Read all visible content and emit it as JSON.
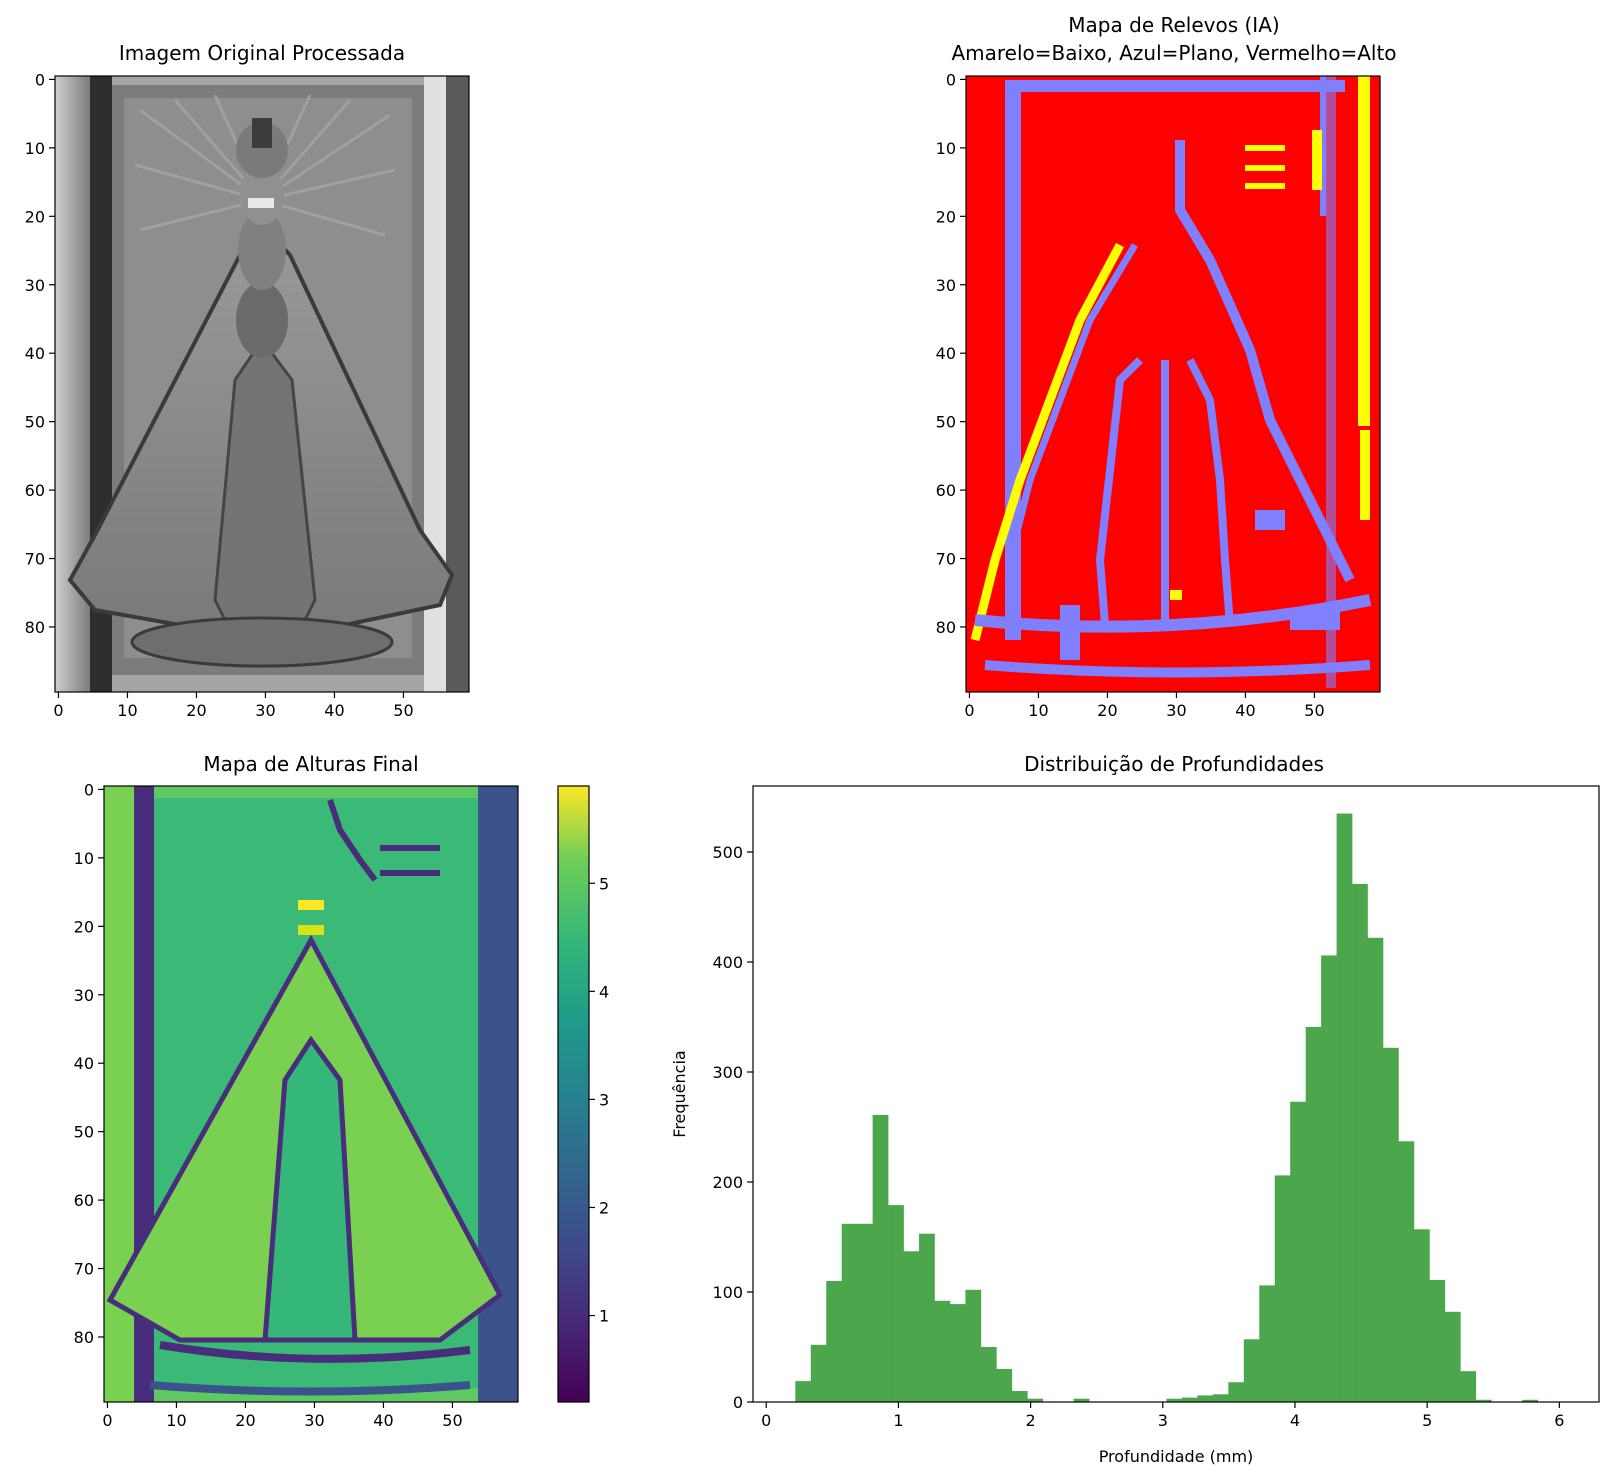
{
  "panels": {
    "original": {
      "title": "Imagem Original Processada",
      "xticks": [
        "0",
        "10",
        "20",
        "30",
        "40",
        "50"
      ],
      "yticks": [
        "0",
        "10",
        "20",
        "30",
        "40",
        "50",
        "60",
        "70",
        "80"
      ],
      "xlim": [
        0,
        60
      ],
      "ylim": [
        0,
        90
      ]
    },
    "relief": {
      "title_line1": "Mapa de Relevos (IA)",
      "title_line2": "Amarelo=Baixo, Azul=Plano, Vermelho=Alto",
      "xticks": [
        "0",
        "10",
        "20",
        "30",
        "40",
        "50"
      ],
      "yticks": [
        "0",
        "10",
        "20",
        "30",
        "40",
        "50",
        "60",
        "70",
        "80"
      ],
      "xlim": [
        0,
        60
      ],
      "ylim": [
        0,
        90
      ],
      "colors": {
        "low": "#ffff00",
        "flat": "#8080ff",
        "high": "#ff0000"
      }
    },
    "heights": {
      "title": "Mapa de Alturas Final",
      "xticks": [
        "0",
        "10",
        "20",
        "30",
        "40",
        "50"
      ],
      "yticks": [
        "0",
        "10",
        "20",
        "30",
        "40",
        "50",
        "60",
        "70",
        "80"
      ],
      "xlim": [
        0,
        60
      ],
      "ylim": [
        0,
        90
      ],
      "colorbar": {
        "ticks": [
          "1",
          "2",
          "3",
          "4",
          "5"
        ],
        "range": [
          0.2,
          5.9
        ]
      }
    }
  },
  "chart_data": {
    "type": "bar",
    "title": "Distribuição de Profundidades",
    "xlabel": "Profundidade (mm)",
    "ylabel": "Frequência",
    "xlim": [
      -0.1,
      6.3
    ],
    "ylim": [
      0,
      560
    ],
    "xticks": [
      "0",
      "1",
      "2",
      "3",
      "4",
      "5",
      "6"
    ],
    "yticks": [
      "0",
      "100",
      "200",
      "300",
      "400",
      "500"
    ],
    "bar_color": "#4ca64c",
    "bin_width": 0.117,
    "bin_starts": [
      0.22,
      0.337,
      0.454,
      0.571,
      0.688,
      0.805,
      0.922,
      1.039,
      1.156,
      1.273,
      1.39,
      1.507,
      1.624,
      1.741,
      1.858,
      1.975,
      2.092,
      2.209,
      2.326,
      2.443,
      2.56,
      2.677,
      2.794,
      2.911,
      3.028,
      3.145,
      3.262,
      3.379,
      3.496,
      3.613,
      3.73,
      3.847,
      3.964,
      4.081,
      4.198,
      4.315,
      4.432,
      4.549,
      4.666,
      4.783,
      4.9,
      5.017,
      5.134,
      5.251,
      5.368,
      5.485,
      5.602,
      5.719,
      5.836,
      5.953
    ],
    "values": [
      19,
      52,
      110,
      162,
      162,
      261,
      179,
      137,
      153,
      92,
      89,
      102,
      50,
      30,
      10,
      3,
      0,
      0,
      3,
      0,
      0,
      0,
      0,
      0,
      3,
      4,
      6,
      7,
      18,
      57,
      106,
      206,
      273,
      341,
      406,
      535,
      471,
      422,
      322,
      237,
      157,
      111,
      82,
      28,
      2,
      0,
      0,
      2,
      0,
      0
    ]
  }
}
